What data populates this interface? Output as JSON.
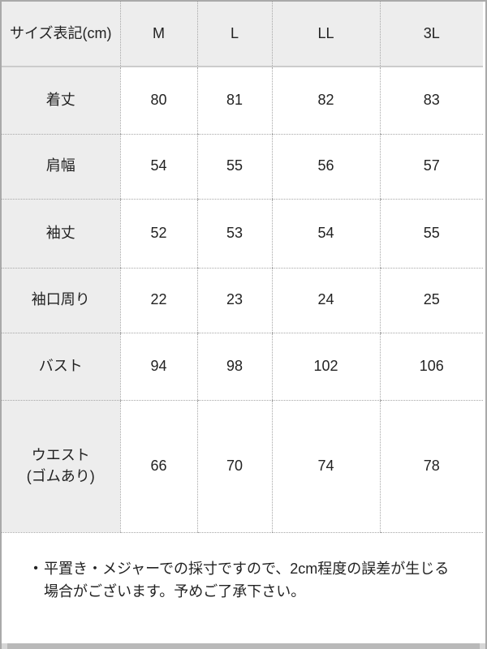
{
  "colors": {
    "frame_border": "#a9a9a9",
    "scrollbar": "#b9b9b9",
    "scrollbar_cap": "#d6d6d6",
    "cell_gray": "#ededed",
    "grid_dotted": "#a6a6a6",
    "header_underline": "#cccccc",
    "text": "#222222"
  },
  "table": {
    "header": [
      "サイズ表記(cm)",
      "M",
      "L",
      "LL",
      "3L"
    ],
    "rows": [
      {
        "label": "着丈",
        "values": [
          "80",
          "81",
          "82",
          "83"
        ]
      },
      {
        "label": "肩幅",
        "values": [
          "54",
          "55",
          "56",
          "57"
        ]
      },
      {
        "label": "袖丈",
        "values": [
          "52",
          "53",
          "54",
          "55"
        ]
      },
      {
        "label": "袖口周り",
        "values": [
          "22",
          "23",
          "24",
          "25"
        ]
      },
      {
        "label": "バスト",
        "values": [
          "94",
          "98",
          "102",
          "106"
        ]
      },
      {
        "label": "ウエスト\n(ゴムあり)",
        "values": [
          "66",
          "70",
          "74",
          "78"
        ]
      }
    ]
  },
  "note": {
    "bullet": "•",
    "text": "平置き・メジャーでの採寸ですので、2cm程度の誤差が生じる\n場合がございます。予めご了承下さい。"
  }
}
